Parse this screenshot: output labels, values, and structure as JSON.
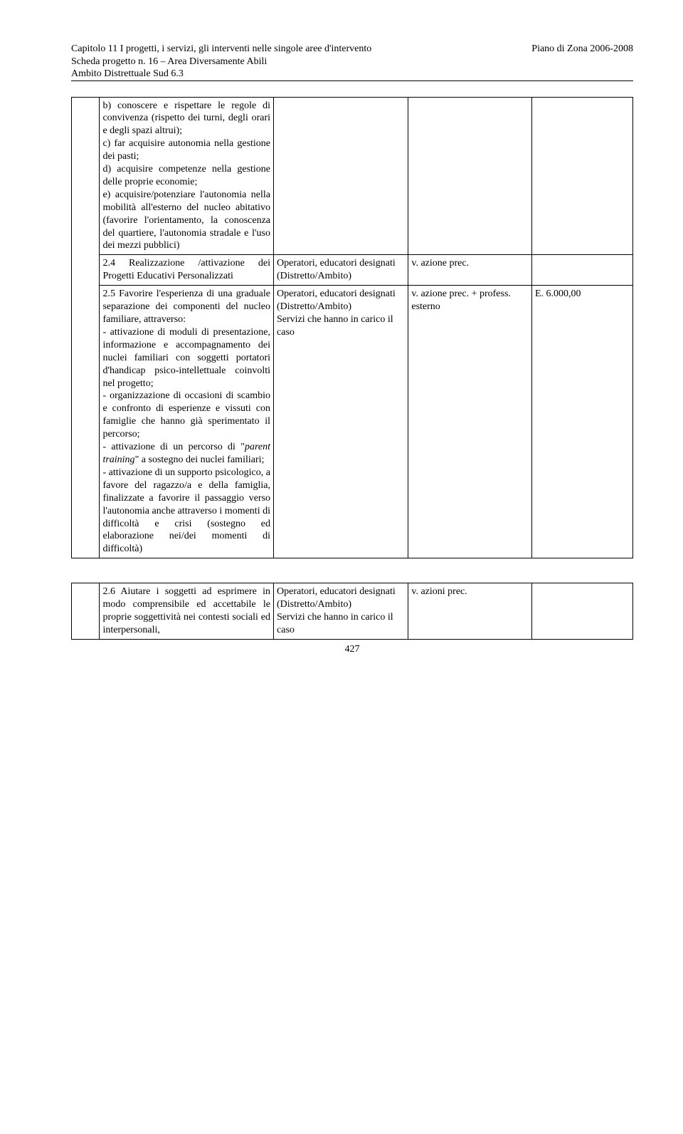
{
  "header": {
    "left_line1": "Capitolo 11   I progetti, i servizi, gli interventi nelle singole aree d'intervento",
    "right_line1": "Piano di Zona 2006-2008",
    "left_line2": "Scheda progetto n. 16 – Area Diversamente Abili",
    "left_line3": "Ambito Distrettuale Sud 6.3"
  },
  "rows": [
    {
      "c1": "b) conoscere e rispettare le regole di convivenza (rispetto dei turni, degli orari e degli spazi altrui);\nc) far acquisire autonomia nella gestione dei pasti;\nd) acquisire competenze nella gestione delle proprie economie;\ne) acquisire/potenziare l'autonomia nella mobilità all'esterno del nucleo abitativo (favorire l'orientamento, la conoscenza del quartiere, l'autonomia stradale e l'uso dei mezzi pubblici)",
      "c2": "",
      "c3": "",
      "c4": ""
    },
    {
      "c1": "2.4 Realizzazione /attivazione dei Progetti Educativi Personalizzati",
      "c2": "Operatori, educatori designati (Distretto/Ambito)",
      "c3": "v. azione prec.",
      "c4": ""
    },
    {
      "c1_html": true,
      "c1": "2.5 Favorire l'esperienza di una graduale separazione dei componenti del nucleo familiare, attraverso:\n- attivazione di moduli di presentazione, informazione e accompagnamento dei nuclei familiari con soggetti portatori d'handicap psico-intellettuale coinvolti nel progetto;\n- organizzazione di occasioni di scambio e confronto di esperienze e vissuti con famiglie che hanno già sperimentato il percorso;\n- attivazione di un percorso di \"<span class=\"italic\">parent training</span>\" a sostegno dei nuclei familiari;\n- attivazione di un supporto psicologico, a favore del ragazzo/a e della famiglia, finalizzate a favorire il passaggio verso l'autonomia anche attraverso i momenti di difficoltà e crisi (sostegno ed elaborazione nei/dei momenti di difficoltà)",
      "c2": "Operatori, educatori designati (Distretto/Ambito)\nServizi che hanno in carico il caso",
      "c3": "v. azione prec. + profess. esterno",
      "c4": "E. 6.000,00"
    }
  ],
  "second_table": {
    "row": {
      "c1": "2.6 Aiutare i soggetti ad esprimere in modo comprensibile ed accettabile le proprie soggettività nei contesti sociali ed interpersonali,",
      "c2": "Operatori, educatori designati (Distretto/Ambito)\nServizi che hanno in carico il caso",
      "c3": "v. azioni prec.",
      "c4": ""
    }
  },
  "page_number": "427"
}
